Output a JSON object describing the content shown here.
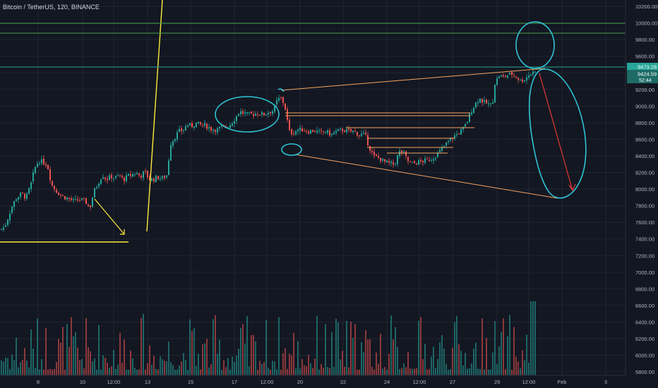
{
  "header": {
    "title": "Bitcoin / TetherUS, 120, BINANCE"
  },
  "colors": {
    "background": "#131722",
    "grid": "#1f2433",
    "up": "#26a69a",
    "down": "#ef5350",
    "yellow_line": "#ffeb3b",
    "green_line": "#43a047",
    "teal_line": "#26a69a",
    "orange_line": "#f7a35c",
    "cyan_marker": "#2ec5d6",
    "red_arrow": "#e53935"
  },
  "chart_data": {
    "type": "candlestick",
    "x_ticks": [
      "8",
      "10",
      "12:00",
      "13",
      "15",
      "17",
      "12:00",
      "20",
      "22",
      "24",
      "12:00",
      "27",
      "29",
      "12:00",
      "Feb",
      "3"
    ],
    "y_ticks": [
      "10200.00",
      "10000.00",
      "9800.00",
      "9600.00",
      "9400.00",
      "9200.00",
      "9000.00",
      "8800.00",
      "8600.00",
      "8400.00",
      "8200.00",
      "8000.00",
      "7800.00",
      "7600.00",
      "7400.00",
      "7200.00",
      "7000.00",
      "6800.00",
      "6600.00",
      "6400.00",
      "6200.00",
      "6000.00",
      "5800.00"
    ],
    "price_labels": {
      "last_price": "9473.28",
      "secondary": "9424.59",
      "countdown": "52:44"
    },
    "control_points": [
      [
        0,
        7520
      ],
      [
        6,
        7560
      ],
      [
        16,
        7800
      ],
      [
        22,
        7900
      ],
      [
        30,
        7950
      ],
      [
        36,
        7900
      ],
      [
        42,
        8040
      ],
      [
        48,
        8250
      ],
      [
        54,
        8350
      ],
      [
        60,
        8330
      ],
      [
        66,
        8300
      ],
      [
        72,
        8060
      ],
      [
        80,
        7970
      ],
      [
        88,
        7920
      ],
      [
        96,
        7890
      ],
      [
        104,
        7860
      ],
      [
        112,
        7880
      ],
      [
        120,
        7860
      ],
      [
        126,
        7770
      ],
      [
        132,
        7980
      ],
      [
        138,
        8080
      ],
      [
        144,
        8180
      ],
      [
        150,
        8120
      ],
      [
        156,
        8160
      ],
      [
        162,
        8140
      ],
      [
        168,
        8170
      ],
      [
        174,
        8120
      ],
      [
        180,
        8160
      ],
      [
        186,
        8180
      ],
      [
        192,
        8200
      ],
      [
        198,
        8160
      ],
      [
        204,
        8220
      ],
      [
        210,
        8130
      ],
      [
        216,
        8120
      ],
      [
        222,
        8150
      ],
      [
        228,
        8130
      ],
      [
        236,
        8180
      ],
      [
        240,
        8550
      ],
      [
        246,
        8620
      ],
      [
        252,
        8700
      ],
      [
        258,
        8710
      ],
      [
        264,
        8780
      ],
      [
        270,
        8760
      ],
      [
        276,
        8800
      ],
      [
        282,
        8780
      ],
      [
        290,
        8770
      ],
      [
        298,
        8730
      ],
      [
        306,
        8720
      ],
      [
        314,
        8750
      ],
      [
        320,
        8760
      ],
      [
        326,
        8790
      ],
      [
        332,
        8860
      ],
      [
        338,
        8940
      ],
      [
        344,
        8920
      ],
      [
        350,
        8900
      ],
      [
        358,
        8910
      ],
      [
        366,
        8920
      ],
      [
        372,
        8900
      ],
      [
        378,
        8930
      ],
      [
        386,
        8950
      ],
      [
        392,
        9080
      ],
      [
        398,
        9100
      ],
      [
        404,
        8950
      ],
      [
        408,
        8700
      ],
      [
        414,
        8680
      ],
      [
        420,
        8720
      ],
      [
        428,
        8720
      ],
      [
        436,
        8700
      ],
      [
        444,
        8710
      ],
      [
        452,
        8680
      ],
      [
        460,
        8700
      ],
      [
        468,
        8660
      ],
      [
        476,
        8700
      ],
      [
        484,
        8720
      ],
      [
        492,
        8700
      ],
      [
        500,
        8700
      ],
      [
        508,
        8660
      ],
      [
        516,
        8660
      ],
      [
        522,
        8510
      ],
      [
        528,
        8400
      ],
      [
        536,
        8380
      ],
      [
        544,
        8330
      ],
      [
        552,
        8310
      ],
      [
        558,
        8300
      ],
      [
        564,
        8450
      ],
      [
        570,
        8450
      ],
      [
        576,
        8350
      ],
      [
        582,
        8310
      ],
      [
        588,
        8320
      ],
      [
        596,
        8340
      ],
      [
        604,
        8350
      ],
      [
        612,
        8380
      ],
      [
        620,
        8440
      ],
      [
        628,
        8520
      ],
      [
        636,
        8600
      ],
      [
        642,
        8640
      ],
      [
        648,
        8680
      ],
      [
        654,
        8720
      ],
      [
        660,
        8800
      ],
      [
        666,
        8940
      ],
      [
        672,
        9030
      ],
      [
        678,
        9100
      ],
      [
        684,
        9050
      ],
      [
        690,
        9030
      ],
      [
        696,
        9010
      ],
      [
        700,
        9280
      ],
      [
        706,
        9370
      ],
      [
        712,
        9350
      ],
      [
        718,
        9380
      ],
      [
        724,
        9390
      ],
      [
        730,
        9360
      ],
      [
        736,
        9310
      ],
      [
        742,
        9330
      ],
      [
        748,
        9380
      ],
      [
        754,
        9410
      ],
      [
        760,
        9473
      ]
    ]
  }
}
